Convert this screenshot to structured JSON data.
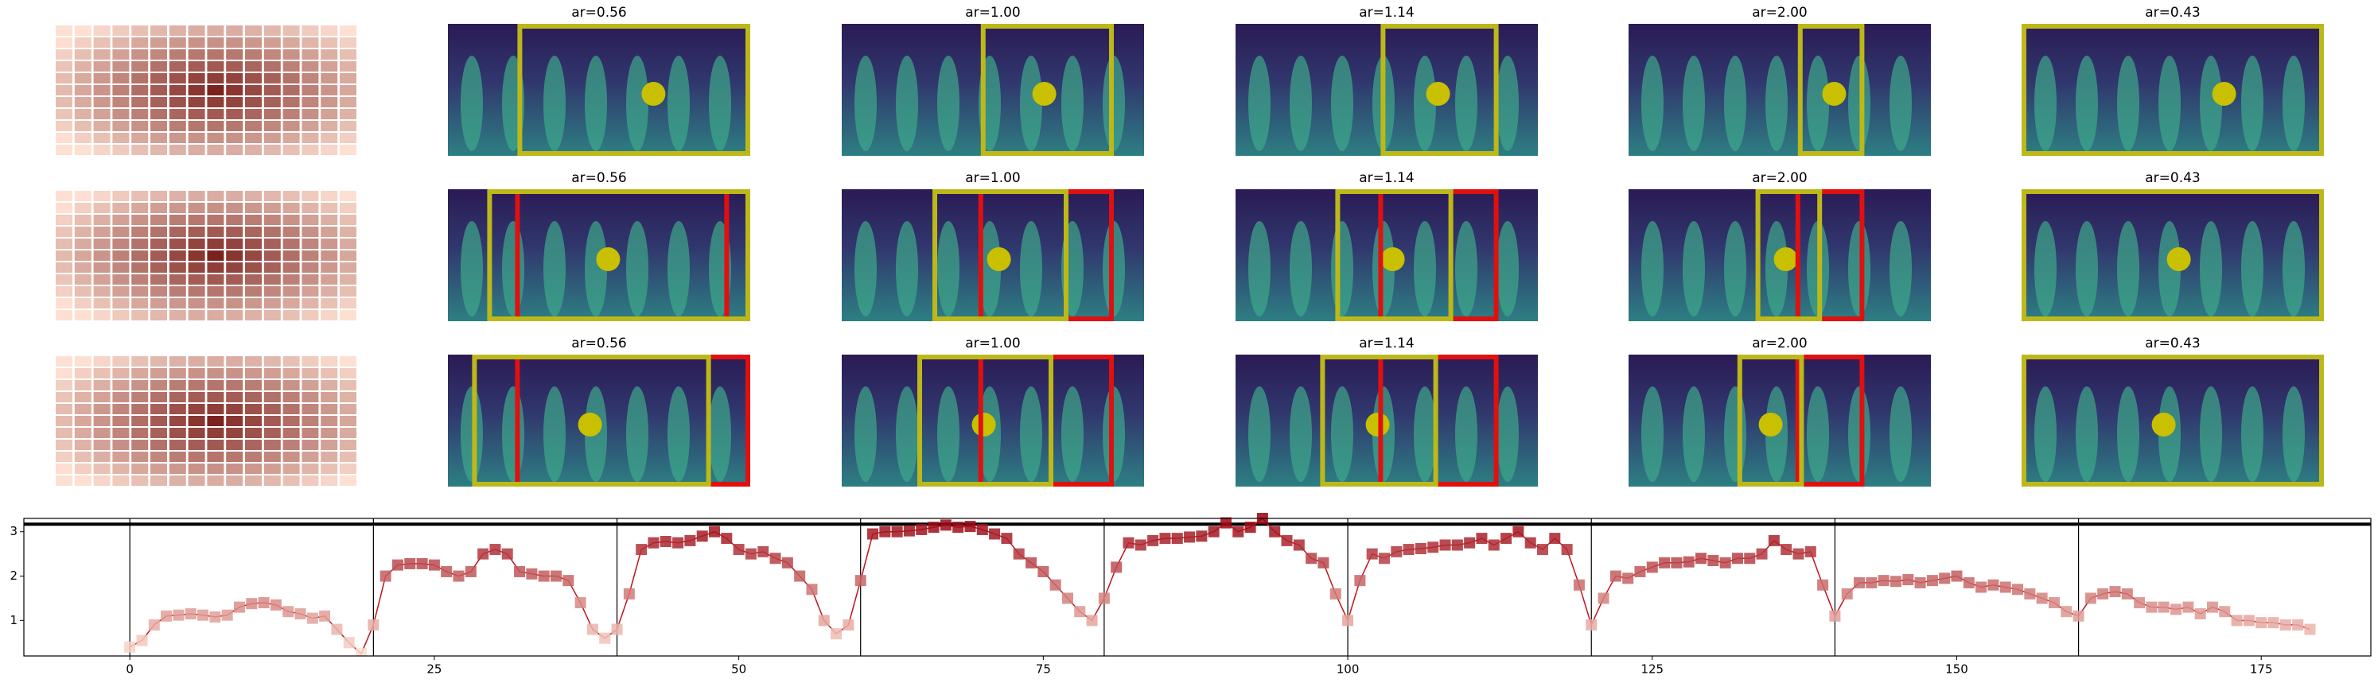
{
  "image_grid": {
    "titles": [
      [
        "ar=0.56",
        "ar=1.00",
        "ar=1.14",
        "ar=2.00",
        "ar=0.43"
      ],
      [
        "ar=0.56",
        "ar=1.00",
        "ar=1.14",
        "ar=2.00",
        "ar=0.43"
      ],
      [
        "ar=0.56",
        "ar=1.00",
        "ar=1.14",
        "ar=2.00",
        "ar=0.43"
      ]
    ]
  },
  "chart_data": {
    "type": "line",
    "colormap": "Reds",
    "x": [
      0,
      1,
      2,
      3,
      4,
      5,
      6,
      7,
      8,
      9,
      10,
      11,
      12,
      13,
      14,
      15,
      16,
      17,
      18,
      19,
      20,
      21,
      22,
      23,
      24,
      25,
      26,
      27,
      28,
      29,
      30,
      31,
      32,
      33,
      34,
      35,
      36,
      37,
      38,
      39,
      40,
      41,
      42,
      43,
      44,
      45,
      46,
      47,
      48,
      49,
      50,
      51,
      52,
      53,
      54,
      55,
      56,
      57,
      58,
      59,
      60,
      61,
      62,
      63,
      64,
      65,
      66,
      67,
      68,
      69,
      70,
      71,
      72,
      73,
      74,
      75,
      76,
      77,
      78,
      79,
      80,
      81,
      82,
      83,
      84,
      85,
      86,
      87,
      88,
      89,
      90,
      91,
      92,
      93,
      94,
      95,
      96,
      97,
      98,
      99,
      100,
      101,
      102,
      103,
      104,
      105,
      106,
      107,
      108,
      109,
      110,
      111,
      112,
      113,
      114,
      115,
      116,
      117,
      118,
      119,
      120,
      121,
      122,
      123,
      124,
      125,
      126,
      127,
      128,
      129,
      130,
      131,
      132,
      133,
      134,
      135,
      136,
      137,
      138,
      139,
      140,
      141,
      142,
      143,
      144,
      145,
      146,
      147,
      148,
      149,
      150,
      151,
      152,
      153,
      154,
      155,
      156,
      157,
      158,
      159,
      160,
      161,
      162,
      163,
      164,
      165,
      166,
      167,
      168,
      169,
      170,
      171,
      172,
      173,
      174,
      175,
      176,
      177,
      178,
      179
    ],
    "values": [
      0.4,
      0.55,
      0.9,
      1.1,
      1.12,
      1.15,
      1.12,
      1.08,
      1.12,
      1.3,
      1.38,
      1.4,
      1.35,
      1.2,
      1.15,
      1.05,
      1.1,
      0.8,
      0.5,
      0.25,
      0.9,
      2.0,
      2.25,
      2.28,
      2.28,
      2.25,
      2.1,
      2.0,
      2.1,
      2.5,
      2.6,
      2.5,
      2.1,
      2.05,
      2.0,
      2.0,
      1.9,
      1.4,
      0.8,
      0.6,
      0.8,
      1.6,
      2.6,
      2.75,
      2.78,
      2.75,
      2.8,
      2.9,
      3.0,
      2.85,
      2.6,
      2.5,
      2.55,
      2.4,
      2.3,
      2.0,
      1.7,
      1.0,
      0.7,
      0.9,
      1.9,
      2.95,
      3.0,
      3.0,
      3.02,
      3.05,
      3.1,
      3.15,
      3.1,
      3.12,
      3.05,
      2.95,
      2.85,
      2.5,
      2.3,
      2.1,
      1.8,
      1.5,
      1.2,
      1.0,
      1.5,
      2.2,
      2.75,
      2.7,
      2.8,
      2.85,
      2.85,
      2.88,
      2.9,
      3.0,
      3.2,
      3.0,
      3.1,
      3.3,
      3.0,
      2.8,
      2.7,
      2.4,
      2.3,
      1.6,
      1.0,
      1.9,
      2.5,
      2.4,
      2.55,
      2.6,
      2.62,
      2.65,
      2.7,
      2.7,
      2.75,
      2.85,
      2.7,
      2.85,
      3.0,
      2.75,
      2.6,
      2.85,
      2.6,
      1.8,
      0.9,
      1.5,
      2.0,
      1.95,
      2.1,
      2.2,
      2.3,
      2.3,
      2.32,
      2.4,
      2.35,
      2.3,
      2.4,
      2.4,
      2.5,
      2.8,
      2.6,
      2.5,
      2.55,
      1.8,
      1.1,
      1.6,
      1.85,
      1.85,
      1.9,
      1.88,
      1.92,
      1.85,
      1.9,
      1.95,
      2.0,
      1.85,
      1.75,
      1.8,
      1.75,
      1.7,
      1.6,
      1.5,
      1.4,
      1.2,
      1.1,
      1.5,
      1.6,
      1.65,
      1.6,
      1.4,
      1.3,
      1.3,
      1.25,
      1.3,
      1.15,
      1.3,
      1.2,
      1.0,
      1.0,
      0.95,
      0.95,
      0.9,
      0.9,
      0.8
    ],
    "xlim": [
      -8.7,
      184
    ],
    "ylim": [
      0.2,
      3.3
    ],
    "xticks": [
      0,
      25,
      50,
      75,
      100,
      125,
      150,
      175
    ],
    "yticks": [
      1,
      2,
      3
    ],
    "vlines": [
      0,
      20,
      40,
      60,
      80,
      100,
      120,
      140,
      160
    ],
    "hlines": [
      3.17
    ]
  }
}
